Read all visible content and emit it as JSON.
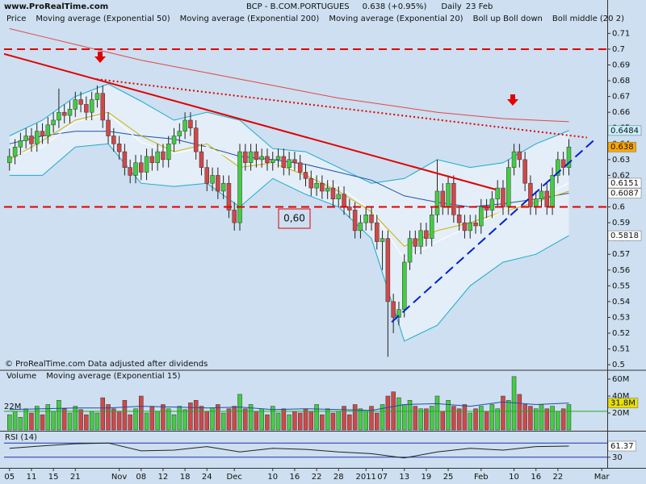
{
  "site": "www.ProRealTime.com",
  "footer": "© ProRealTime.com  Data adjusted after dividends",
  "annotation": "0,60",
  "chart_data": [
    {
      "type": "candlestick",
      "title": "BCP - B.COM.PORTUGUES",
      "quote": "0.638 (+0.95%)",
      "period": "Daily",
      "date": "23 Feb",
      "label": "Price",
      "xlim": [
        -1,
        109
      ],
      "xticks": [
        {
          "value": 0,
          "label": "05"
        },
        {
          "value": 4,
          "label": "11"
        },
        {
          "value": 8,
          "label": "15"
        },
        {
          "value": 12,
          "label": "21"
        },
        {
          "value": 20,
          "label": "Nov"
        },
        {
          "value": 24,
          "label": "08"
        },
        {
          "value": 28,
          "label": "12"
        },
        {
          "value": 32,
          "label": "18"
        },
        {
          "value": 36,
          "label": "24"
        },
        {
          "value": 41,
          "label": "Dec"
        },
        {
          "value": 48,
          "label": "10"
        },
        {
          "value": 52,
          "label": "16"
        },
        {
          "value": 56,
          "label": "22"
        },
        {
          "value": 60,
          "label": "28"
        },
        {
          "value": 65,
          "label": "2011"
        },
        {
          "value": 68,
          "label": "07"
        },
        {
          "value": 72,
          "label": "13"
        },
        {
          "value": 76,
          "label": "19"
        },
        {
          "value": 80,
          "label": "25"
        },
        {
          "value": 86,
          "label": "Feb"
        },
        {
          "value": 92,
          "label": "10"
        },
        {
          "value": 96,
          "label": "16"
        },
        {
          "value": 100,
          "label": "22"
        },
        {
          "value": 108,
          "label": "Mar"
        }
      ],
      "ylim": [
        0.497,
        0.724
      ],
      "yticks": [
        0.5,
        0.51,
        0.52,
        0.53,
        0.54,
        0.55,
        0.56,
        0.57,
        0.58,
        0.59,
        0.6,
        0.61,
        0.62,
        0.63,
        0.64,
        0.65,
        0.66,
        0.67,
        0.68,
        0.69,
        0.7,
        0.71
      ],
      "up_color": "#44cc44",
      "down_color": "#d04848",
      "show_last_close": true,
      "open": [
        0.628,
        0.632,
        0.638,
        0.642,
        0.645,
        0.64,
        0.648,
        0.645,
        0.652,
        0.655,
        0.66,
        0.658,
        0.662,
        0.668,
        0.665,
        0.66,
        0.668,
        0.672,
        0.655,
        0.645,
        0.64,
        0.635,
        0.625,
        0.62,
        0.628,
        0.622,
        0.632,
        0.628,
        0.635,
        0.63,
        0.64,
        0.645,
        0.648,
        0.655,
        0.65,
        0.635,
        0.625,
        0.615,
        0.62,
        0.61,
        0.615,
        0.598,
        0.59,
        0.635,
        0.628,
        0.635,
        0.63,
        0.632,
        0.628,
        0.63,
        0.632,
        0.625,
        0.63,
        0.628,
        0.622,
        0.618,
        0.612,
        0.615,
        0.61,
        0.612,
        0.605,
        0.608,
        0.6,
        0.598,
        0.585,
        0.59,
        0.595,
        0.59,
        0.578,
        0.58,
        0.54,
        0.53,
        0.535,
        0.565,
        0.58,
        0.575,
        0.585,
        0.58,
        0.595,
        0.61,
        0.6,
        0.615,
        0.595,
        0.59,
        0.585,
        0.59,
        0.588,
        0.6,
        0.598,
        0.605,
        0.612,
        0.6,
        0.625,
        0.635,
        0.63,
        0.615,
        0.6,
        0.605,
        0.61,
        0.6,
        0.62,
        0.63,
        0.625
      ],
      "high": [
        0.637,
        0.643,
        0.647,
        0.65,
        0.65,
        0.653,
        0.653,
        0.657,
        0.66,
        0.675,
        0.665,
        0.667,
        0.673,
        0.673,
        0.67,
        0.673,
        0.677,
        0.677,
        0.66,
        0.65,
        0.645,
        0.64,
        0.63,
        0.633,
        0.633,
        0.637,
        0.637,
        0.64,
        0.64,
        0.645,
        0.65,
        0.653,
        0.66,
        0.66,
        0.655,
        0.64,
        0.63,
        0.625,
        0.625,
        0.62,
        0.62,
        0.603,
        0.64,
        0.64,
        0.64,
        0.64,
        0.637,
        0.637,
        0.635,
        0.637,
        0.637,
        0.635,
        0.635,
        0.633,
        0.627,
        0.623,
        0.62,
        0.62,
        0.617,
        0.617,
        0.613,
        0.613,
        0.605,
        0.603,
        0.595,
        0.6,
        0.6,
        0.595,
        0.585,
        0.585,
        0.545,
        0.54,
        0.57,
        0.585,
        0.585,
        0.59,
        0.59,
        0.6,
        0.63,
        0.615,
        0.62,
        0.62,
        0.6,
        0.595,
        0.595,
        0.595,
        0.605,
        0.605,
        0.61,
        0.617,
        0.617,
        0.63,
        0.64,
        0.64,
        0.635,
        0.62,
        0.61,
        0.615,
        0.615,
        0.625,
        0.635,
        0.635,
        0.643
      ],
      "low": [
        0.623,
        0.627,
        0.633,
        0.637,
        0.635,
        0.635,
        0.64,
        0.64,
        0.647,
        0.65,
        0.653,
        0.653,
        0.657,
        0.66,
        0.655,
        0.655,
        0.663,
        0.65,
        0.64,
        0.635,
        0.63,
        0.62,
        0.615,
        0.615,
        0.617,
        0.617,
        0.623,
        0.623,
        0.625,
        0.625,
        0.635,
        0.64,
        0.643,
        0.645,
        0.63,
        0.62,
        0.61,
        0.61,
        0.605,
        0.605,
        0.593,
        0.585,
        0.585,
        0.623,
        0.623,
        0.625,
        0.625,
        0.623,
        0.623,
        0.625,
        0.62,
        0.62,
        0.623,
        0.617,
        0.613,
        0.607,
        0.607,
        0.605,
        0.605,
        0.6,
        0.6,
        0.595,
        0.593,
        0.58,
        0.58,
        0.585,
        0.585,
        0.573,
        0.56,
        0.505,
        0.52,
        0.525,
        0.53,
        0.56,
        0.57,
        0.57,
        0.575,
        0.575,
        0.59,
        0.595,
        0.595,
        0.59,
        0.585,
        0.58,
        0.58,
        0.583,
        0.583,
        0.593,
        0.593,
        0.6,
        0.595,
        0.595,
        0.62,
        0.625,
        0.61,
        0.595,
        0.595,
        0.6,
        0.595,
        0.595,
        0.615,
        0.62,
        0.62
      ],
      "close": [
        0.632,
        0.638,
        0.642,
        0.645,
        0.64,
        0.648,
        0.645,
        0.652,
        0.655,
        0.66,
        0.658,
        0.662,
        0.668,
        0.665,
        0.66,
        0.668,
        0.672,
        0.655,
        0.645,
        0.64,
        0.635,
        0.625,
        0.62,
        0.628,
        0.622,
        0.632,
        0.628,
        0.635,
        0.63,
        0.64,
        0.645,
        0.648,
        0.655,
        0.65,
        0.635,
        0.625,
        0.615,
        0.62,
        0.61,
        0.615,
        0.598,
        0.59,
        0.635,
        0.628,
        0.635,
        0.63,
        0.632,
        0.628,
        0.63,
        0.632,
        0.625,
        0.63,
        0.628,
        0.622,
        0.618,
        0.612,
        0.615,
        0.61,
        0.612,
        0.605,
        0.608,
        0.6,
        0.598,
        0.585,
        0.59,
        0.595,
        0.59,
        0.578,
        0.58,
        0.54,
        0.53,
        0.535,
        0.565,
        0.58,
        0.575,
        0.585,
        0.58,
        0.595,
        0.61,
        0.6,
        0.615,
        0.595,
        0.59,
        0.585,
        0.59,
        0.588,
        0.6,
        0.598,
        0.605,
        0.612,
        0.6,
        0.625,
        0.635,
        0.63,
        0.615,
        0.6,
        0.605,
        0.61,
        0.6,
        0.62,
        0.63,
        0.625,
        0.638
      ],
      "overlay_x": [
        0,
        6,
        12,
        18,
        24,
        30,
        36,
        42,
        48,
        54,
        60,
        66,
        72,
        78,
        84,
        90,
        96,
        102
      ],
      "band": {
        "name": "Boll up Boll down",
        "color": "#1aaccc",
        "fill": "#e4eef8",
        "show_last": true,
        "upper": [
          0.645,
          0.655,
          0.67,
          0.678,
          0.667,
          0.655,
          0.66,
          0.655,
          0.637,
          0.635,
          0.625,
          0.615,
          0.618,
          0.63,
          0.625,
          0.628,
          0.64,
          0.6484
        ],
        "lower": [
          0.62,
          0.62,
          0.638,
          0.64,
          0.615,
          0.613,
          0.615,
          0.6,
          0.618,
          0.608,
          0.6,
          0.58,
          0.515,
          0.525,
          0.55,
          0.565,
          0.57,
          0.5818
        ]
      },
      "series": [
        {
          "name": "Moving average (Exponential 50)",
          "color": "#1f4fa8",
          "show_last": true,
          "values": [
            0.64,
            0.645,
            0.648,
            0.648,
            0.645,
            0.643,
            0.638,
            0.632,
            0.63,
            0.627,
            0.622,
            0.617,
            0.607,
            0.603,
            0.6,
            0.602,
            0.605,
            0.6087
          ]
        },
        {
          "name": "Moving average (Exponential 200)",
          "color": "#e04848",
          "values": [
            0.713,
            0.708,
            0.703,
            0.698,
            0.693,
            0.689,
            0.685,
            0.681,
            0.677,
            0.673,
            0.669,
            0.666,
            0.663,
            0.66,
            0.658,
            0.656,
            0.655,
            0.654
          ]
        },
        {
          "name": "Moving average (Exponential 20)",
          "color": "#c8b400",
          "values": [
            0.63,
            0.642,
            0.655,
            0.66,
            0.645,
            0.635,
            0.64,
            0.625,
            0.628,
            0.62,
            0.61,
            0.597,
            0.575,
            0.585,
            0.59,
            0.597,
            0.603,
            0.61
          ]
        },
        {
          "name": "Boll middle (20 2)",
          "color": "#ffffff",
          "show_last": true,
          "values": [
            0.632,
            0.638,
            0.654,
            0.659,
            0.641,
            0.634,
            0.638,
            0.628,
            0.628,
            0.622,
            0.613,
            0.598,
            0.567,
            0.578,
            0.588,
            0.597,
            0.605,
            0.6151
          ]
        }
      ],
      "trend_lines": [
        {
          "color": "#e00000",
          "dash": "none",
          "x": [
            -1,
            88.7
          ],
          "values": [
            0.697,
            0.611
          ]
        },
        {
          "color": "#e00000",
          "dash": "2 3",
          "x": [
            15.9,
            105.3
          ],
          "values": [
            0.681,
            0.644
          ]
        },
        {
          "color": "#0020d0",
          "dash": "12 6",
          "x": [
            69.7,
            106.8
          ],
          "values": [
            0.527,
            0.643
          ]
        }
      ],
      "levels": [
        0.7,
        0.6
      ],
      "level_color": "#e00000"
    },
    {
      "type": "bar",
      "label": "Volume",
      "label_color": "#22aa22",
      "ylim": [
        0,
        69.5
      ],
      "yticks": [
        {
          "value": 20,
          "label": "20M"
        },
        {
          "value": 40,
          "label": "40M"
        },
        {
          "value": 60,
          "label": "60M"
        }
      ],
      "values": [
        18,
        22,
        15,
        25,
        20,
        28,
        18,
        30,
        22,
        35,
        25,
        20,
        28,
        24,
        18,
        22,
        20,
        38,
        30,
        25,
        22,
        35,
        18,
        25,
        40,
        20,
        28,
        22,
        30,
        25,
        18,
        28,
        24,
        32,
        35,
        28,
        22,
        26,
        30,
        20,
        25,
        28,
        42,
        25,
        30,
        22,
        25,
        18,
        28,
        20,
        25,
        18,
        22,
        20,
        25,
        22,
        30,
        18,
        25,
        20,
        22,
        28,
        18,
        30,
        25,
        22,
        28,
        20,
        30,
        40,
        45,
        38,
        30,
        35,
        28,
        25,
        25,
        28,
        40,
        22,
        35,
        28,
        25,
        30,
        20,
        25,
        28,
        22,
        30,
        25,
        40,
        35,
        63,
        42,
        30,
        28,
        25,
        30,
        25,
        28,
        22,
        25,
        30
      ],
      "overlay_x": [
        0,
        6,
        12,
        18,
        24,
        30,
        36,
        42,
        48,
        54,
        60,
        66,
        72,
        78,
        84,
        90,
        96,
        102
      ],
      "series": [
        {
          "name": "Moving average (Exponential 15)",
          "color": "#1f4fa8",
          "values": [
            24,
            25,
            26,
            26,
            28,
            27,
            26,
            27,
            24,
            25,
            24,
            23,
            30,
            31,
            28,
            33,
            30,
            31.8
          ],
          "value_labels": [
            null,
            null,
            null,
            null,
            null,
            null,
            null,
            null,
            null,
            null,
            null,
            null,
            null,
            null,
            null,
            null,
            null,
            "31.8M"
          ]
        }
      ],
      "levels": [
        {
          "value": 22,
          "label": "22M"
        }
      ],
      "level_color": "#22aa22"
    },
    {
      "type": "line",
      "title": "RSI (14)",
      "color": "#222222",
      "show_last": true,
      "ylim": [
        0,
        100
      ],
      "yticks": [
        30
      ],
      "overlay_x": [
        0,
        6,
        12,
        18,
        24,
        30,
        36,
        42,
        48,
        54,
        60,
        66,
        72,
        78,
        84,
        90,
        96,
        102
      ],
      "values": [
        55,
        62,
        68,
        70,
        48,
        50,
        60,
        45,
        55,
        52,
        45,
        40,
        28,
        45,
        55,
        50,
        60,
        61.37
      ],
      "levels": [
        70,
        30
      ],
      "level_color": "#2233aa"
    }
  ]
}
